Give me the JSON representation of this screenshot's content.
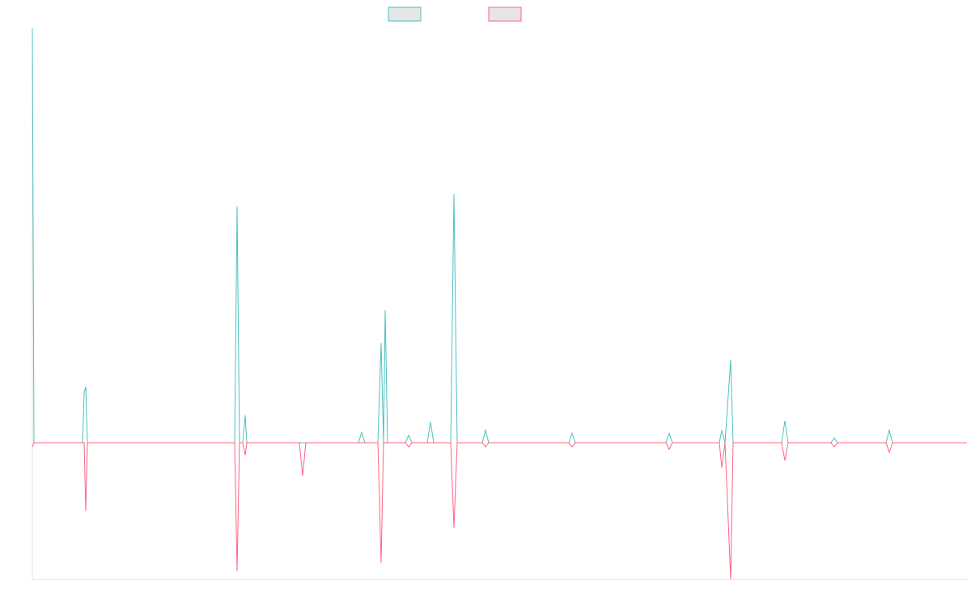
{
  "chart_data": {
    "type": "line",
    "x": [
      0,
      2,
      62,
      64,
      66,
      68,
      250,
      253,
      256,
      260,
      263,
      265,
      330,
      334,
      338,
      403,
      407,
      411,
      427,
      431,
      434,
      436,
      439,
      461,
      465,
      469,
      488,
      492,
      496,
      517,
      521,
      525,
      556,
      560,
      564,
      663,
      667,
      671,
      783,
      787,
      791,
      849,
      852,
      856,
      863,
      866,
      926,
      930,
      934,
      987,
      991,
      995,
      1055,
      1059,
      1063,
      1155
    ],
    "xlim": [
      0,
      1155
    ],
    "ylim": [
      -33,
      100
    ],
    "legend": "top",
    "series": [
      {
        "color": "#4bc0c0",
        "values": [
          100,
          0,
          0,
          12,
          13.5,
          0,
          0,
          57,
          0,
          0,
          6.6,
          0,
          0,
          0,
          0,
          0,
          2.5,
          0,
          0,
          24,
          0,
          32,
          0,
          0,
          1.8,
          0,
          0,
          5,
          0,
          0,
          60,
          0,
          0,
          3,
          0,
          0,
          2.3,
          0,
          0,
          2.3,
          0,
          0,
          3,
          0,
          20,
          0,
          0,
          5.3,
          0,
          0,
          1.2,
          0,
          0,
          3,
          0,
          0
        ]
      },
      {
        "color": "#ff6384",
        "values": [
          -1,
          0,
          0,
          0,
          -16.4,
          0,
          0,
          -31,
          0,
          0,
          -3,
          0,
          0,
          -8,
          0,
          0,
          0,
          0,
          0,
          -29,
          0,
          0,
          0,
          0,
          -1,
          0,
          0,
          0,
          0,
          0,
          -20.5,
          0,
          0,
          -1,
          0,
          0,
          -1,
          0,
          0,
          -1.6,
          0,
          0,
          -6,
          0,
          -33,
          0,
          0,
          -4.3,
          0,
          0,
          -1,
          0,
          0,
          -2.3,
          0,
          0
        ]
      }
    ]
  }
}
